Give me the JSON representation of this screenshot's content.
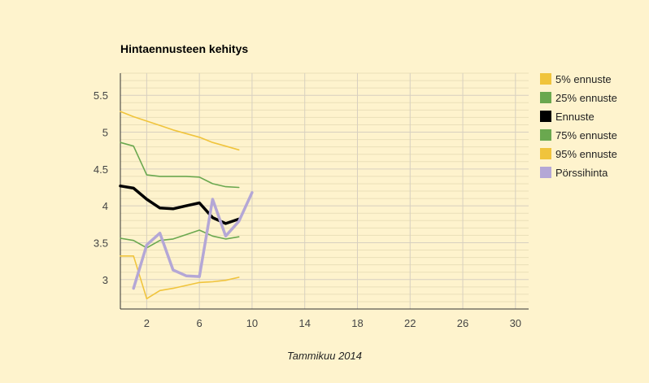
{
  "chart_data": {
    "type": "line",
    "title": "Hintaennusteen kehitys",
    "xlabel": "Tammikuu 2014",
    "ylabel": "",
    "xlim": [
      0,
      31
    ],
    "ylim": [
      2.6,
      5.8
    ],
    "x_ticks": [
      2,
      6,
      10,
      14,
      18,
      22,
      26,
      30
    ],
    "y_ticks": [
      3,
      3.5,
      4,
      4.5,
      5,
      5.5
    ],
    "x_tick_labels": [
      "2",
      "6",
      "10",
      "14",
      "18",
      "22",
      "26",
      "30"
    ],
    "y_tick_labels": [
      "3",
      "3.5",
      "4",
      "4.5",
      "5",
      "5.5"
    ],
    "grid": true,
    "legend_position": "right",
    "series": [
      {
        "name": "5% ennuste",
        "color": "#f0c43c",
        "width": 1.6,
        "x": [
          0,
          1,
          2,
          3,
          4,
          5,
          6,
          7,
          8,
          9
        ],
        "y": [
          3.32,
          3.32,
          2.74,
          2.85,
          2.88,
          2.92,
          2.96,
          2.97,
          2.99,
          3.03
        ]
      },
      {
        "name": "25% ennuste",
        "color": "#6aa84f",
        "width": 1.6,
        "x": [
          0,
          1,
          2,
          3,
          4,
          5,
          6,
          7,
          8,
          9
        ],
        "y": [
          3.56,
          3.53,
          3.43,
          3.53,
          3.55,
          3.61,
          3.67,
          3.59,
          3.55,
          3.58
        ]
      },
      {
        "name": "Ennuste",
        "color": "#000000",
        "width": 3.5,
        "x": [
          0,
          1,
          2,
          3,
          4,
          5,
          6,
          7,
          8,
          9
        ],
        "y": [
          4.27,
          4.24,
          4.09,
          3.97,
          3.96,
          4.0,
          4.04,
          3.84,
          3.76,
          3.82
        ]
      },
      {
        "name": "75% ennuste",
        "color": "#6aa84f",
        "width": 1.6,
        "x": [
          0,
          1,
          2,
          3,
          4,
          5,
          6,
          7,
          8,
          9
        ],
        "y": [
          4.86,
          4.81,
          4.42,
          4.4,
          4.4,
          4.4,
          4.39,
          4.3,
          4.26,
          4.25
        ]
      },
      {
        "name": "95% ennuste",
        "color": "#f0c43c",
        "width": 1.6,
        "x": [
          0,
          1,
          2,
          3,
          4,
          5,
          6,
          7,
          8,
          9
        ],
        "y": [
          5.28,
          5.21,
          5.15,
          5.09,
          5.03,
          4.98,
          4.93,
          4.86,
          4.81,
          4.76
        ]
      },
      {
        "name": "Pörssihinta",
        "color": "#b4a7d6",
        "width": 3.5,
        "x": [
          1,
          2,
          3,
          4,
          5,
          6,
          7,
          8,
          9,
          10
        ],
        "y": [
          2.88,
          3.47,
          3.63,
          3.13,
          3.05,
          3.04,
          4.09,
          3.59,
          3.79,
          4.18
        ]
      }
    ]
  }
}
